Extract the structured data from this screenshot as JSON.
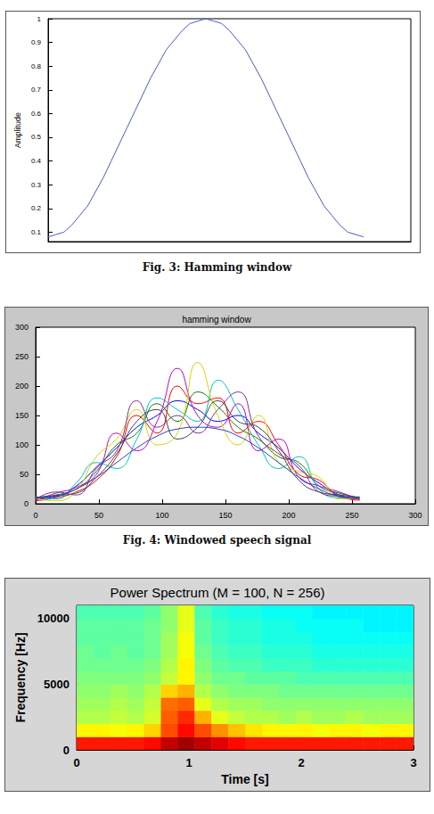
{
  "chart_data": [
    {
      "type": "line",
      "caption": "Fig. 3: Hamming window",
      "ylabel": "Amplitude",
      "x": [
        0,
        1,
        2,
        3,
        4,
        5,
        6,
        7,
        8,
        9,
        10,
        11,
        12,
        13,
        14,
        15,
        16,
        17,
        18,
        19,
        20,
        21,
        22,
        23,
        24,
        25,
        26,
        27,
        28,
        29,
        30,
        31,
        32,
        33,
        34,
        35,
        36,
        37,
        38,
        39,
        40
      ],
      "values": [
        0.08,
        0.09,
        0.1,
        0.13,
        0.17,
        0.21,
        0.27,
        0.33,
        0.4,
        0.47,
        0.54,
        0.61,
        0.68,
        0.75,
        0.81,
        0.87,
        0.91,
        0.95,
        0.98,
        0.99,
        1.0,
        0.99,
        0.98,
        0.95,
        0.91,
        0.87,
        0.81,
        0.75,
        0.68,
        0.61,
        0.54,
        0.47,
        0.4,
        0.33,
        0.27,
        0.21,
        0.17,
        0.13,
        0.1,
        0.09,
        0.08
      ],
      "color": "#4a5cc4",
      "xlim": [
        0,
        46
      ],
      "ylim": [
        0.06,
        1
      ],
      "yticks": [
        0.1,
        0.2,
        0.3,
        0.4,
        0.5,
        0.6,
        0.7,
        0.8,
        0.9,
        1
      ],
      "tick_labels": "y",
      "grid": false
    },
    {
      "type": "line",
      "caption": "Fig. 4: Windowed speech signal",
      "title": "hamming window",
      "x": [
        0,
        16,
        32,
        48,
        64,
        80,
        96,
        112,
        128,
        144,
        160,
        176,
        192,
        208,
        224,
        240,
        256
      ],
      "series": [
        {
          "color": "#0000ff",
          "values": [
            8,
            12,
            30,
            62,
            95,
            130,
            150,
            175,
            160,
            140,
            150,
            120,
            95,
            60,
            35,
            15,
            8
          ]
        },
        {
          "color": "#008000",
          "values": [
            10,
            15,
            25,
            55,
            100,
            120,
            170,
            140,
            190,
            165,
            130,
            110,
            80,
            70,
            30,
            18,
            10
          ]
        },
        {
          "color": "#ff0000",
          "values": [
            5,
            10,
            20,
            40,
            80,
            150,
            120,
            200,
            170,
            180,
            120,
            140,
            100,
            50,
            40,
            12,
            6
          ]
        },
        {
          "color": "#00bfbf",
          "values": [
            12,
            8,
            35,
            70,
            60,
            110,
            180,
            160,
            140,
            210,
            160,
            100,
            60,
            80,
            25,
            10,
            12
          ]
        },
        {
          "color": "#bf00bf",
          "values": [
            6,
            18,
            28,
            50,
            120,
            90,
            140,
            230,
            150,
            130,
            170,
            90,
            110,
            45,
            30,
            20,
            7
          ]
        },
        {
          "color": "#d4d400",
          "values": [
            9,
            5,
            22,
            80,
            110,
            160,
            100,
            120,
            240,
            150,
            100,
            150,
            70,
            55,
            45,
            8,
            9
          ]
        },
        {
          "color": "#404040",
          "values": [
            11,
            14,
            18,
            45,
            85,
            140,
            160,
            110,
            130,
            175,
            140,
            130,
            90,
            40,
            20,
            15,
            11
          ]
        },
        {
          "color": "#7e2f8e",
          "values": [
            7,
            20,
            15,
            60,
            90,
            175,
            130,
            150,
            120,
            160,
            190,
            115,
            85,
            65,
            20,
            12,
            8
          ]
        },
        {
          "color": "#1f3fbf",
          "values": [
            10,
            13,
            25,
            45,
            70,
            95,
            115,
            127,
            130,
            127,
            115,
            95,
            70,
            45,
            25,
            13,
            10
          ]
        }
      ],
      "xlim": [
        0,
        300
      ],
      "ylim": [
        0,
        300
      ],
      "xticks": [
        0,
        50,
        100,
        150,
        200,
        250,
        300
      ],
      "yticks": [
        0,
        50,
        100,
        150,
        200,
        250,
        300
      ],
      "grid": false
    },
    {
      "type": "heatmap",
      "caption": "",
      "title": "Power Spectrum (M = 100, N = 256)",
      "xlabel": "Time [s]",
      "ylabel": "Frequency [Hz]",
      "x": [
        0,
        0.15,
        0.3,
        0.45,
        0.6,
        0.75,
        0.9,
        1.05,
        1.2,
        1.35,
        1.5,
        1.65,
        1.8,
        1.95,
        2.1,
        2.25,
        2.4,
        2.55,
        2.7,
        2.85,
        3
      ],
      "y": [
        0,
        1000,
        2000,
        3000,
        4000,
        5000,
        6000,
        7000,
        8000,
        9000,
        10000,
        11000
      ],
      "cells": [
        [
          -9,
          -9,
          -9,
          -9,
          -8,
          -4,
          -2,
          -4,
          -6,
          -8,
          -9,
          -9,
          -9,
          -9,
          -9,
          -9,
          -9,
          -9,
          -9,
          -9
        ],
        [
          -22,
          -22,
          -23,
          -22,
          -20,
          -12,
          -8,
          -12,
          -16,
          -19,
          -21,
          -22,
          -22,
          -22,
          -23,
          -22,
          -22,
          -23,
          -22,
          -22
        ],
        [
          -27,
          -27,
          -26,
          -27,
          -25,
          -13,
          -10,
          -18,
          -24,
          -26,
          -27,
          -27,
          -28,
          -27,
          -28,
          -28,
          -27,
          -28,
          -28,
          -28
        ],
        [
          -28,
          -28,
          -27,
          -28,
          -26,
          -14,
          -13,
          -24,
          -27,
          -28,
          -28,
          -29,
          -29,
          -29,
          -29,
          -29,
          -29,
          -29,
          -29,
          -29
        ],
        [
          -29,
          -29,
          -28,
          -29,
          -27,
          -20,
          -18,
          -27,
          -29,
          -30,
          -30,
          -30,
          -31,
          -31,
          -31,
          -31,
          -31,
          -31,
          -31,
          -31
        ],
        [
          -30,
          -30,
          -30,
          -30,
          -29,
          -26,
          -22,
          -29,
          -31,
          -31,
          -32,
          -32,
          -32,
          -33,
          -33,
          -33,
          -33,
          -33,
          -33,
          -33
        ],
        [
          -31,
          -31,
          -31,
          -31,
          -30,
          -27,
          -22,
          -30,
          -32,
          -33,
          -33,
          -34,
          -34,
          -34,
          -35,
          -35,
          -35,
          -35,
          -35,
          -35
        ],
        [
          -31,
          -32,
          -31,
          -32,
          -31,
          -28,
          -23,
          -31,
          -33,
          -34,
          -34,
          -35,
          -35,
          -35,
          -36,
          -36,
          -36,
          -36,
          -36,
          -36
        ],
        [
          -32,
          -32,
          -32,
          -32,
          -31,
          -28,
          -23,
          -32,
          -34,
          -35,
          -35,
          -36,
          -36,
          -36,
          -37,
          -37,
          -37,
          -37,
          -37,
          -37
        ],
        [
          -32,
          -32,
          -32,
          -32,
          -31,
          -29,
          -24,
          -32,
          -34,
          -35,
          -35,
          -36,
          -36,
          -37,
          -37,
          -37,
          -37,
          -38,
          -38,
          -38
        ],
        [
          -33,
          -33,
          -33,
          -33,
          -32,
          -29,
          -24,
          -33,
          -35,
          -36,
          -36,
          -37,
          -37,
          -37,
          -38,
          -38,
          -38,
          -38,
          -38,
          -38
        ]
      ],
      "zlim": [
        -60,
        0
      ],
      "xlim": [
        0,
        3
      ],
      "ylim": [
        0,
        11000
      ],
      "xticks": [
        0,
        1,
        2,
        3
      ],
      "yticks": [
        0,
        5000,
        10000
      ],
      "grid": false
    }
  ]
}
